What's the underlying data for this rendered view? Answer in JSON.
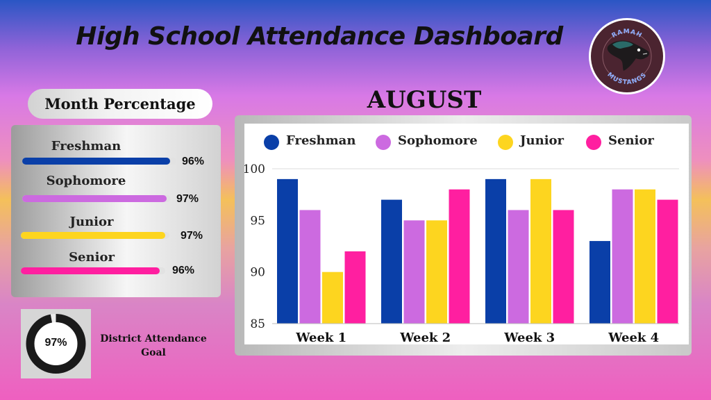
{
  "title": "High School Attendance Dashboard",
  "logo": {
    "top_text": "RAMAH",
    "bottom_text": "MUSTANGS",
    "icon": "mustang-horse-icon"
  },
  "month_percentage": {
    "heading": "Month Percentage",
    "items": [
      {
        "label": "Freshman",
        "value": "96%",
        "fraction": 0.96,
        "color": "#0a3fa8"
      },
      {
        "label": "Sophomore",
        "value": "97%",
        "fraction": 0.97,
        "color": "#cc6ae0"
      },
      {
        "label": "Junior",
        "value": "97%",
        "fraction": 0.97,
        "color": "#fdd51f"
      },
      {
        "label": "Senior",
        "value": "96%",
        "fraction": 0.96,
        "color": "#ff1fa0"
      }
    ]
  },
  "goal": {
    "value": "97%",
    "fraction": 0.97,
    "caption_line1": "District Attendance",
    "caption_line2": "Goal"
  },
  "month": "AUGUST",
  "chart_data": {
    "type": "bar",
    "categories": [
      "Week 1",
      "Week 2",
      "Week 3",
      "Week 4"
    ],
    "series": [
      {
        "name": "Freshman",
        "color": "#0a3fa8",
        "values": [
          99,
          97,
          99,
          93
        ]
      },
      {
        "name": "Sophomore",
        "color": "#cc6ae0",
        "values": [
          96,
          95,
          96,
          98
        ]
      },
      {
        "name": "Junior",
        "color": "#fdd51f",
        "values": [
          90,
          95,
          99,
          98
        ]
      },
      {
        "name": "Senior",
        "color": "#ff1fa0",
        "values": [
          92,
          98,
          96,
          97
        ]
      }
    ],
    "ylim": [
      85,
      100
    ],
    "yticks": [
      "85",
      "90",
      "95",
      "100"
    ],
    "grid": false,
    "legend_position": "top"
  }
}
